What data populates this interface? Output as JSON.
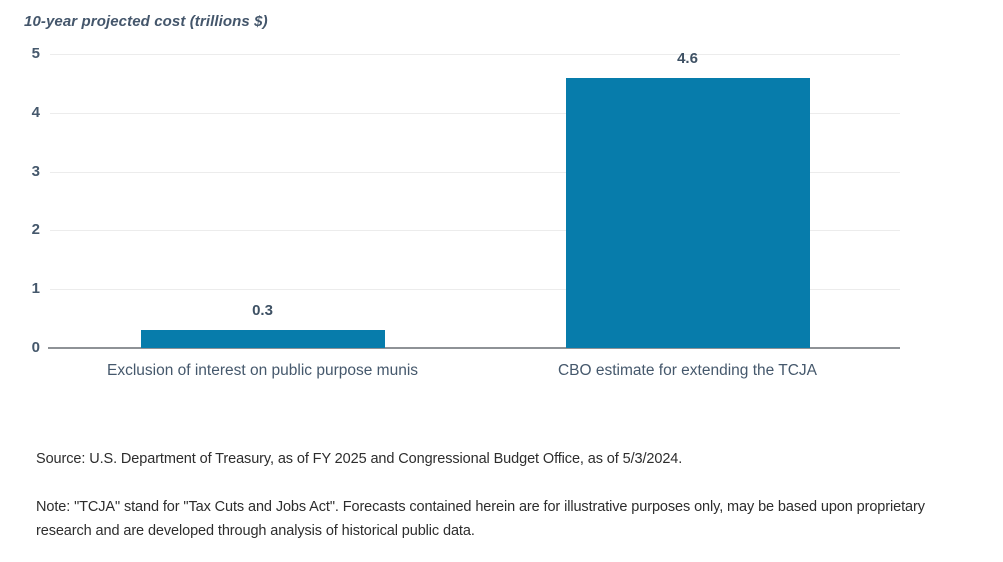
{
  "chart_data": {
    "type": "bar",
    "title": "10-year projected cost (trillions $)",
    "categories": [
      "Exclusion of interest on public purpose munis",
      "CBO estimate for extending the TCJA"
    ],
    "values": [
      0.3,
      4.6
    ],
    "value_labels": [
      "0.3",
      "4.6"
    ],
    "xlabel": "",
    "ylabel": "10-year projected cost (trillions $)",
    "ylim": [
      0,
      5
    ],
    "yticks": [
      0,
      1,
      2,
      3,
      4,
      5
    ],
    "grid": true,
    "legend": "none",
    "bar_color": "#077cab",
    "gridline_color": "#ececec",
    "axis_line_color": "#8e9296",
    "tick_label_color": "#45586c",
    "value_label_color": "#3e5164"
  },
  "footer": {
    "source": "Source: U.S. Department of Treasury, as of FY 2025 and Congressional Budget Office, as of 5/3/2024.",
    "note_line1": "Note: \"TCJA\" stand for \"Tax Cuts and Jobs Act\". Forecasts contained herein are for illustrative purposes only, may be based upon proprietary",
    "note_line2": "research and are developed through analysis of historical public data."
  }
}
